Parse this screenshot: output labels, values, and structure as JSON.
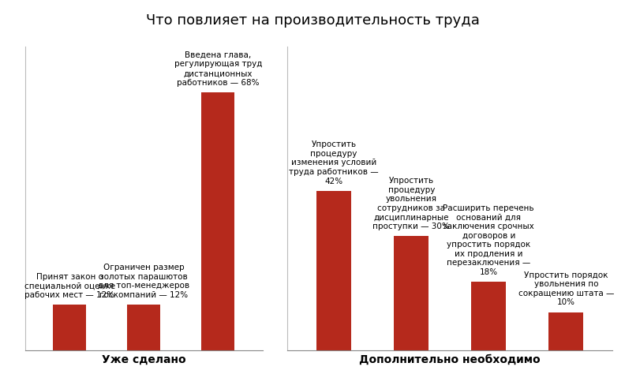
{
  "title": "Что повлияет на производительность труда",
  "chart_data": [
    {
      "type": "bar",
      "xlabel": "Уже сделано",
      "categories": [
        "Принят закон о специальной оценке рабочих мест — 12%",
        "Ограничен размер золотых парашютов для топ-менеджеров госкомпаний — 12%",
        "Введена глава, регулирующая труд дистанционных работников — 68%"
      ],
      "values": [
        12,
        12,
        68
      ],
      "color": "#b5291c",
      "ylim": [
        0,
        80
      ],
      "yticks": [],
      "tick_labels": false
    },
    {
      "type": "bar",
      "xlabel": "Дополнительно необходимо",
      "categories": [
        "Упростить процедуру изменения условий труда работников — 42%",
        "Упростить процедуру увольнения сотрудников за дисциплинарные проступки — 30%",
        "Расширить перечень оснований для заключения срочных договоров и упростить порядок их продления и перезаключения — 18%",
        "Упростить порядок увольнения по сокращению штата — 10%"
      ],
      "values": [
        42,
        30,
        18,
        10
      ],
      "color": "#b5291c",
      "ylim": [
        0,
        80
      ],
      "yticks": [],
      "tick_labels": false
    }
  ]
}
